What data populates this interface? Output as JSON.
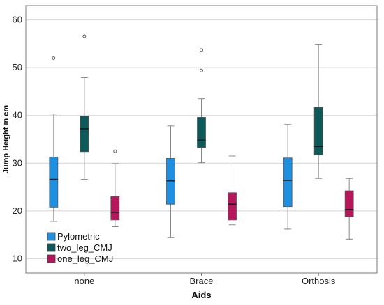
{
  "chart_data": {
    "type": "box",
    "xlabel": "Aids",
    "ylabel": "Jump Height in cm",
    "categories": [
      "none",
      "Brace",
      "Orthosis"
    ],
    "ylim": [
      7,
      63
    ],
    "yticks": [
      10,
      20,
      30,
      40,
      50,
      60
    ],
    "grid": "horizontal",
    "legend_position": "bottom-left",
    "series": [
      {
        "name": "Pylometric",
        "color": "#1f8fe0",
        "boxes": [
          {
            "min": 17.8,
            "q1": 20.8,
            "median": 26.6,
            "q3": 31.3,
            "max": 40.3,
            "outliers": [
              52.0
            ]
          },
          {
            "min": 14.4,
            "q1": 21.4,
            "median": 26.3,
            "q3": 31.0,
            "max": 37.8,
            "outliers": []
          },
          {
            "min": 16.2,
            "q1": 20.9,
            "median": 26.4,
            "q3": 31.1,
            "max": 38.1,
            "outliers": []
          }
        ]
      },
      {
        "name": "two_leg_CMJ",
        "color": "#0e5a5a",
        "boxes": [
          {
            "min": 26.6,
            "q1": 32.4,
            "median": 37.2,
            "q3": 39.9,
            "max": 47.9,
            "outliers": [
              56.6
            ]
          },
          {
            "min": 30.1,
            "q1": 33.3,
            "median": 34.8,
            "q3": 39.6,
            "max": 43.5,
            "outliers": [
              49.4,
              53.7
            ]
          },
          {
            "min": 26.8,
            "q1": 31.7,
            "median": 33.5,
            "q3": 41.7,
            "max": 54.9,
            "outliers": []
          }
        ]
      },
      {
        "name": "one_leg_CMJ",
        "color": "#b5175a",
        "boxes": [
          {
            "min": 16.7,
            "q1": 18.1,
            "median": 19.7,
            "q3": 23.0,
            "max": 29.9,
            "outliers": [
              32.5
            ]
          },
          {
            "min": 17.1,
            "q1": 18.1,
            "median": 21.4,
            "q3": 23.8,
            "max": 31.5,
            "outliers": []
          },
          {
            "min": 14.1,
            "q1": 18.8,
            "median": 20.3,
            "q3": 24.2,
            "max": 26.8,
            "outliers": []
          }
        ]
      }
    ]
  }
}
